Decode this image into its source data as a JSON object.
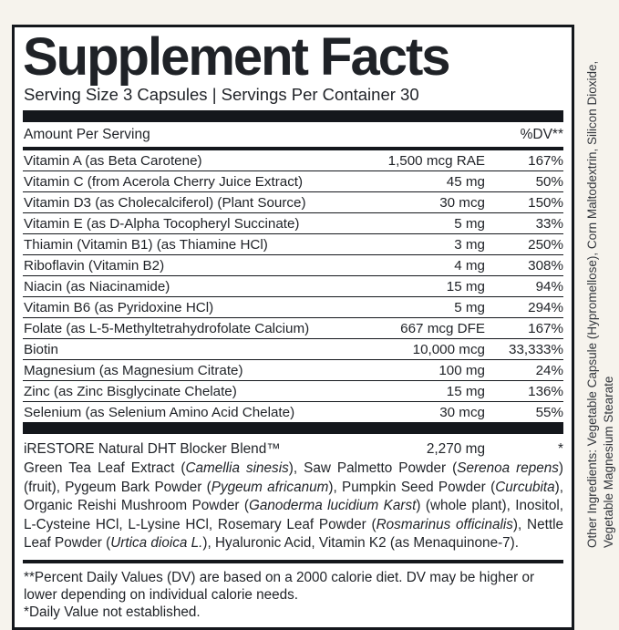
{
  "colors": {
    "page_background": "#f6f3ed",
    "panel_background": "#ffffff",
    "ink": "#14171c",
    "side_text_ink": "#33373d"
  },
  "header": {
    "title": "Supplement Facts",
    "serving_line": "Serving Size 3 Capsules | Servings Per Container 30"
  },
  "table": {
    "amount_header": "Amount Per Serving",
    "dv_header": "%DV**",
    "rows": [
      {
        "name": "Vitamin A (as Beta Carotene)",
        "amount": "1,500 mcg RAE",
        "dv": "167%"
      },
      {
        "name": "Vitamin C (from Acerola Cherry Juice Extract)",
        "amount": "45 mg",
        "dv": "50%"
      },
      {
        "name": "Vitamin D3 (as Cholecalciferol) (Plant Source)",
        "amount": "30 mcg",
        "dv": "150%"
      },
      {
        "name": "Vitamin E (as D-Alpha Tocopheryl Succinate)",
        "amount": "5 mg",
        "dv": "33%"
      },
      {
        "name": "Thiamin (Vitamin B1) (as Thiamine HCl)",
        "amount": "3 mg",
        "dv": "250%"
      },
      {
        "name": "Riboflavin (Vitamin B2)",
        "amount": "4 mg",
        "dv": "308%"
      },
      {
        "name": "Niacin (as Niacinamide)",
        "amount": "15 mg",
        "dv": "94%"
      },
      {
        "name": "Vitamin B6 (as Pyridoxine HCl)",
        "amount": "5 mg",
        "dv": "294%"
      },
      {
        "name": "Folate (as L-5-Methyltetrahydrofolate Calcium)",
        "amount": "667 mcg DFE",
        "dv": "167%"
      },
      {
        "name": "Biotin",
        "amount": "10,000 mcg",
        "dv": "33,333%"
      },
      {
        "name": "Magnesium (as Magnesium Citrate)",
        "amount": "100 mg",
        "dv": "24%"
      },
      {
        "name": "Zinc (as Zinc Bisglycinate Chelate)",
        "amount": "15 mg",
        "dv": "136%"
      },
      {
        "name": "Selenium (as Selenium Amino Acid Chelate)",
        "amount": "30 mcg",
        "dv": "55%"
      }
    ]
  },
  "blend": {
    "name": "iRESTORE Natural DHT Blocker Blend™",
    "amount": "2,270 mg",
    "dv": "*",
    "description_segments": [
      {
        "text": "Green Tea Leaf Extract (",
        "italic": false
      },
      {
        "text": "Camellia sinesis",
        "italic": true
      },
      {
        "text": "), Saw Palmetto Powder (",
        "italic": false
      },
      {
        "text": "Serenoa repens",
        "italic": true
      },
      {
        "text": ") (fruit), Pygeum Bark Powder (",
        "italic": false
      },
      {
        "text": "Pygeum africanum",
        "italic": true
      },
      {
        "text": "), Pumpkin Seed Powder (",
        "italic": false
      },
      {
        "text": "Curcubita",
        "italic": true
      },
      {
        "text": "), Organic Reishi Mushroom Powder (",
        "italic": false
      },
      {
        "text": "Ganoderma lucidium Karst",
        "italic": true
      },
      {
        "text": ") (whole plant), Inositol, L-Cysteine HCl, L-Lysine HCl, Rosemary Leaf Powder (",
        "italic": false
      },
      {
        "text": "Rosmarinus officinalis",
        "italic": true
      },
      {
        "text": "), Nettle Leaf Powder (",
        "italic": false
      },
      {
        "text": "Urtica dioica L.",
        "italic": true
      },
      {
        "text": "), Hyaluronic Acid, Vitamin K2 (as Menaquinone-7).",
        "italic": false
      }
    ]
  },
  "footnotes": {
    "percent_dv": "**Percent Daily Values (DV) are based on a 2000 calorie diet. DV may be higher or lower depending on individual calorie needs.",
    "daily_value": "*Daily Value not established."
  },
  "side_text": {
    "line1": "Other Ingredients: Vegetable Capsule (Hypromellose), Corn Maltodextrin, Silicon Dioxide,",
    "line2": "Vegetable Magnesium Stearate"
  }
}
